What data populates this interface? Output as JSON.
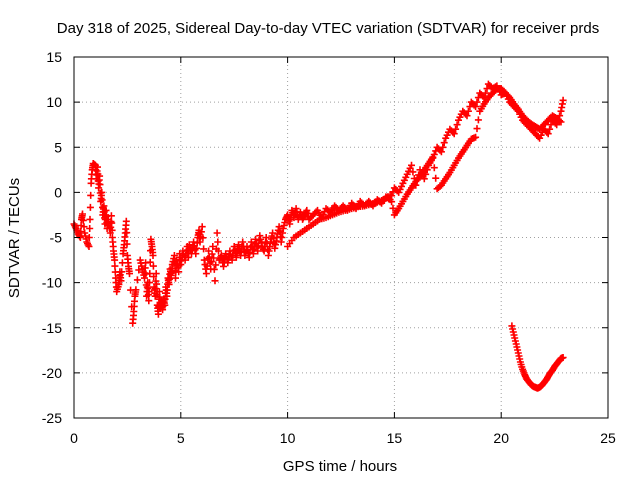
{
  "chart_data": {
    "type": "scatter",
    "title": "Day 318 of 2025, Sidereal Day-to-day VTEC variation (SDTVAR) for receiver prds",
    "xlabel": "GPS time / hours",
    "ylabel": "SDTVAR / TECUs",
    "xlim": [
      0,
      25
    ],
    "ylim": [
      -25,
      15
    ],
    "xticks": [
      0,
      5,
      10,
      15,
      20,
      25
    ],
    "yticks": [
      -25,
      -20,
      -15,
      -10,
      -5,
      0,
      5,
      10,
      15
    ],
    "xtick_labels": [
      "0",
      "5",
      "10",
      "15",
      "20",
      "25"
    ],
    "ytick_labels": [
      "-25",
      "-20",
      "-15",
      "-10",
      "-5",
      "0",
      "5",
      "10",
      "15"
    ],
    "grid": true,
    "marker": "plus",
    "color": "#ff0000",
    "series": [
      {
        "name": "main",
        "points": [
          [
            0.0,
            -3.5
          ],
          [
            0.1,
            -4.0
          ],
          [
            0.2,
            -4.6
          ],
          [
            0.3,
            -5.0
          ],
          [
            0.35,
            -3.0
          ],
          [
            0.4,
            -2.4
          ],
          [
            0.5,
            -4.5
          ],
          [
            0.6,
            -5.5
          ],
          [
            0.7,
            -6.0
          ],
          [
            0.75,
            -3.0
          ],
          [
            0.8,
            1.0
          ],
          [
            0.85,
            2.5
          ],
          [
            0.9,
            3.2
          ],
          [
            1.0,
            3.0
          ],
          [
            1.05,
            1.5
          ],
          [
            1.1,
            2.8
          ],
          [
            1.15,
            0.5
          ],
          [
            1.2,
            1.8
          ],
          [
            1.25,
            -1.0
          ],
          [
            1.3,
            0.0
          ],
          [
            1.35,
            -2.5
          ],
          [
            1.4,
            -1.5
          ],
          [
            1.45,
            -3.5
          ],
          [
            1.5,
            -2.0
          ],
          [
            1.55,
            -4.0
          ],
          [
            1.6,
            -3.0
          ],
          [
            1.7,
            -4.5
          ],
          [
            1.75,
            -2.6
          ],
          [
            1.8,
            -5.0
          ],
          [
            1.85,
            -6.5
          ],
          [
            1.9,
            -7.5
          ],
          [
            1.95,
            -9.5
          ],
          [
            2.0,
            -11.0
          ],
          [
            2.1,
            -10.2
          ],
          [
            2.15,
            -8.8
          ],
          [
            2.2,
            -9.8
          ],
          [
            2.3,
            -6.8
          ],
          [
            2.35,
            -5.8
          ],
          [
            2.4,
            -4.5
          ],
          [
            2.45,
            -3.2
          ],
          [
            2.5,
            -7.0
          ],
          [
            2.55,
            -8.2
          ],
          [
            2.6,
            -9.0
          ],
          [
            2.75,
            -14.5
          ],
          [
            2.8,
            -13.2
          ],
          [
            2.85,
            -11.5
          ],
          [
            2.9,
            -10.8
          ],
          [
            3.1,
            -7.5
          ],
          [
            3.2,
            -8.5
          ],
          [
            3.3,
            -9.5
          ],
          [
            3.35,
            -7.8
          ],
          [
            3.4,
            -11.5
          ],
          [
            3.45,
            -10.0
          ],
          [
            3.5,
            -12.0
          ],
          [
            3.55,
            -9.0
          ],
          [
            3.6,
            -5.2
          ],
          [
            3.65,
            -6.0
          ],
          [
            3.7,
            -7.0
          ],
          [
            3.75,
            -10.5
          ],
          [
            3.8,
            -11.5
          ],
          [
            3.85,
            -9.0
          ],
          [
            3.9,
            -12.5
          ],
          [
            3.95,
            -13.5
          ],
          [
            4.0,
            -11.0
          ],
          [
            4.05,
            -12.8
          ],
          [
            4.1,
            -12.0
          ],
          [
            4.15,
            -13.0
          ],
          [
            4.2,
            -11.8
          ],
          [
            4.25,
            -12.5
          ],
          [
            4.3,
            -10.5
          ],
          [
            4.35,
            -11.5
          ],
          [
            4.4,
            -9.5
          ],
          [
            4.45,
            -10.2
          ],
          [
            4.5,
            -8.5
          ],
          [
            4.55,
            -9.2
          ],
          [
            4.6,
            -8.0
          ],
          [
            4.7,
            -7.0
          ],
          [
            4.75,
            -9.5
          ],
          [
            4.8,
            -7.5
          ],
          [
            4.9,
            -8.8
          ],
          [
            4.95,
            -6.8
          ],
          [
            5.0,
            -8.0
          ],
          [
            5.1,
            -6.5
          ],
          [
            5.2,
            -7.5
          ],
          [
            5.3,
            -6.0
          ],
          [
            5.35,
            -7.2
          ],
          [
            5.4,
            -5.8
          ],
          [
            5.5,
            -6.8
          ],
          [
            5.6,
            -5.5
          ],
          [
            5.7,
            -6.8
          ],
          [
            5.8,
            -5.0
          ],
          [
            5.85,
            -4.2
          ],
          [
            5.9,
            -5.5
          ],
          [
            6.0,
            -3.8
          ],
          [
            6.1,
            -7.5
          ],
          [
            6.2,
            -9.0
          ],
          [
            6.3,
            -6.5
          ],
          [
            6.4,
            -8.5
          ],
          [
            6.5,
            -6.0
          ],
          [
            6.6,
            -9.8
          ],
          [
            6.7,
            -4.5
          ],
          [
            6.8,
            -7.5
          ],
          [
            6.9,
            -7.0
          ],
          [
            7.0,
            -8.2
          ],
          [
            7.1,
            -6.8
          ],
          [
            7.2,
            -7.8
          ],
          [
            7.3,
            -6.5
          ],
          [
            7.4,
            -7.5
          ],
          [
            7.5,
            -6.0
          ],
          [
            7.6,
            -7.2
          ],
          [
            7.7,
            -5.8
          ],
          [
            7.8,
            -7.0
          ],
          [
            7.9,
            -5.5
          ],
          [
            8.0,
            -7.0
          ],
          [
            8.1,
            -6.0
          ],
          [
            8.2,
            -7.2
          ],
          [
            8.3,
            -5.5
          ],
          [
            8.4,
            -6.8
          ],
          [
            8.5,
            -5.2
          ],
          [
            8.6,
            -6.5
          ],
          [
            8.7,
            -4.8
          ],
          [
            8.8,
            -6.0
          ],
          [
            8.9,
            -6.5
          ],
          [
            9.0,
            -5.0
          ],
          [
            9.1,
            -7.0
          ],
          [
            9.2,
            -5.5
          ],
          [
            9.3,
            -4.5
          ],
          [
            9.4,
            -6.2
          ],
          [
            9.5,
            -5.0
          ],
          [
            9.6,
            -3.8
          ],
          [
            9.7,
            -5.5
          ],
          [
            9.8,
            -4.0
          ],
          [
            9.9,
            -3.0
          ],
          [
            10.0,
            -2.5
          ],
          [
            10.1,
            -3.5
          ],
          [
            10.2,
            -2.0
          ],
          [
            10.3,
            -2.8
          ],
          [
            10.4,
            -1.8
          ],
          [
            10.5,
            -3.0
          ],
          [
            10.6,
            -2.2
          ],
          [
            10.7,
            -3.0
          ],
          [
            10.8,
            -2.5
          ],
          [
            10.9,
            -2.0
          ],
          [
            11.0,
            -3.0
          ],
          [
            11.2,
            -2.5
          ],
          [
            11.4,
            -2.0
          ],
          [
            11.6,
            -2.8
          ],
          [
            11.8,
            -1.8
          ],
          [
            12.0,
            -2.2
          ],
          [
            12.2,
            -1.5
          ],
          [
            12.4,
            -2.0
          ],
          [
            12.6,
            -1.5
          ],
          [
            12.8,
            -2.0
          ],
          [
            13.0,
            -1.2
          ],
          [
            13.2,
            -1.8
          ],
          [
            13.4,
            -1.0
          ],
          [
            13.6,
            -1.5
          ],
          [
            13.8,
            -1.0
          ],
          [
            14.0,
            -1.5
          ],
          [
            14.2,
            -0.8
          ],
          [
            14.4,
            -1.2
          ],
          [
            14.6,
            -0.5
          ],
          [
            14.8,
            -0.8
          ],
          [
            15.0,
            0.5
          ],
          [
            15.2,
            0.0
          ],
          [
            15.4,
            1.0
          ],
          [
            15.6,
            2.0
          ],
          [
            15.8,
            3.0
          ],
          [
            16.0,
            0.8
          ],
          [
            16.2,
            2.5
          ],
          [
            16.4,
            1.5
          ],
          [
            16.6,
            3.0
          ],
          [
            16.8,
            3.8
          ],
          [
            17.0,
            5.0
          ],
          [
            17.2,
            4.5
          ],
          [
            17.4,
            6.0
          ],
          [
            17.6,
            7.0
          ],
          [
            17.8,
            6.5
          ],
          [
            18.0,
            8.0
          ],
          [
            18.2,
            9.0
          ],
          [
            18.4,
            8.5
          ],
          [
            18.6,
            10.0
          ],
          [
            18.8,
            9.5
          ],
          [
            19.0,
            11.0
          ],
          [
            19.2,
            10.5
          ],
          [
            19.4,
            12.0
          ],
          [
            19.6,
            11.5
          ],
          [
            19.8,
            11.8
          ],
          [
            20.0,
            10.8
          ],
          [
            20.2,
            11.0
          ],
          [
            20.4,
            10.0
          ],
          [
            20.6,
            9.5
          ],
          [
            20.8,
            9.0
          ],
          [
            21.0,
            8.0
          ],
          [
            21.2,
            7.5
          ],
          [
            21.4,
            7.0
          ],
          [
            21.6,
            6.5
          ],
          [
            21.8,
            6.0
          ],
          [
            22.0,
            7.0
          ],
          [
            22.2,
            6.5
          ],
          [
            22.4,
            8.0
          ],
          [
            22.6,
            7.5
          ],
          [
            22.8,
            9.0
          ],
          [
            22.9,
            10.2
          ]
        ]
      },
      {
        "name": "secondary",
        "points": [
          [
            10.0,
            -6.0
          ],
          [
            10.3,
            -5.0
          ],
          [
            10.6,
            -4.5
          ],
          [
            10.9,
            -4.0
          ],
          [
            11.2,
            -3.5
          ],
          [
            11.5,
            -3.0
          ],
          [
            11.8,
            -2.8
          ],
          [
            12.1,
            -2.5
          ],
          [
            12.4,
            -2.2
          ],
          [
            12.7,
            -2.0
          ],
          [
            13.0,
            -1.8
          ],
          [
            13.3,
            -1.6
          ],
          [
            13.6,
            -1.5
          ],
          [
            13.9,
            -1.3
          ],
          [
            14.2,
            -1.1
          ],
          [
            14.5,
            -0.8
          ],
          [
            14.8,
            -0.3
          ],
          [
            15.0,
            -2.5
          ],
          [
            15.2,
            -1.8
          ],
          [
            15.4,
            -1.0
          ],
          [
            15.6,
            -0.2
          ],
          [
            15.8,
            0.5
          ],
          [
            16.0,
            1.2
          ],
          [
            16.2,
            1.8
          ],
          [
            16.4,
            2.5
          ],
          [
            16.6,
            3.2
          ],
          [
            16.8,
            3.9
          ],
          [
            17.0,
            0.4
          ],
          [
            17.2,
            0.8
          ],
          [
            17.4,
            1.5
          ],
          [
            17.6,
            2.2
          ],
          [
            17.8,
            3.0
          ],
          [
            18.0,
            3.8
          ],
          [
            18.2,
            4.5
          ],
          [
            18.4,
            5.2
          ],
          [
            18.6,
            5.9
          ],
          [
            18.8,
            6.1
          ],
          [
            19.0,
            9.0
          ],
          [
            19.2,
            9.8
          ],
          [
            19.4,
            10.5
          ],
          [
            19.6,
            11.0
          ],
          [
            19.8,
            11.5
          ],
          [
            20.0,
            11.5
          ],
          [
            20.2,
            11.0
          ],
          [
            20.4,
            10.5
          ],
          [
            20.6,
            9.8
          ],
          [
            20.8,
            9.2
          ],
          [
            21.0,
            8.5
          ],
          [
            21.2,
            8.0
          ],
          [
            21.4,
            7.6
          ],
          [
            21.6,
            7.3
          ],
          [
            21.8,
            7.0
          ],
          [
            22.0,
            7.5
          ],
          [
            22.2,
            8.0
          ],
          [
            22.4,
            8.5
          ],
          [
            22.6,
            8.2
          ],
          [
            22.8,
            7.8
          ]
        ]
      },
      {
        "name": "lower",
        "points": [
          [
            20.5,
            -14.8
          ],
          [
            20.6,
            -15.8
          ],
          [
            20.7,
            -16.8
          ],
          [
            20.8,
            -17.8
          ],
          [
            20.9,
            -18.8
          ],
          [
            21.0,
            -19.6
          ],
          [
            21.1,
            -20.2
          ],
          [
            21.2,
            -20.7
          ],
          [
            21.3,
            -21.0
          ],
          [
            21.4,
            -21.3
          ],
          [
            21.5,
            -21.5
          ],
          [
            21.6,
            -21.6
          ],
          [
            21.7,
            -21.7
          ],
          [
            21.8,
            -21.6
          ],
          [
            21.9,
            -21.4
          ],
          [
            22.0,
            -21.1
          ],
          [
            22.1,
            -20.8
          ],
          [
            22.2,
            -20.4
          ],
          [
            22.3,
            -20.0
          ],
          [
            22.4,
            -19.7
          ],
          [
            22.5,
            -19.3
          ],
          [
            22.6,
            -19.0
          ],
          [
            22.7,
            -18.7
          ],
          [
            22.8,
            -18.4
          ],
          [
            22.9,
            -18.3
          ]
        ]
      }
    ]
  }
}
